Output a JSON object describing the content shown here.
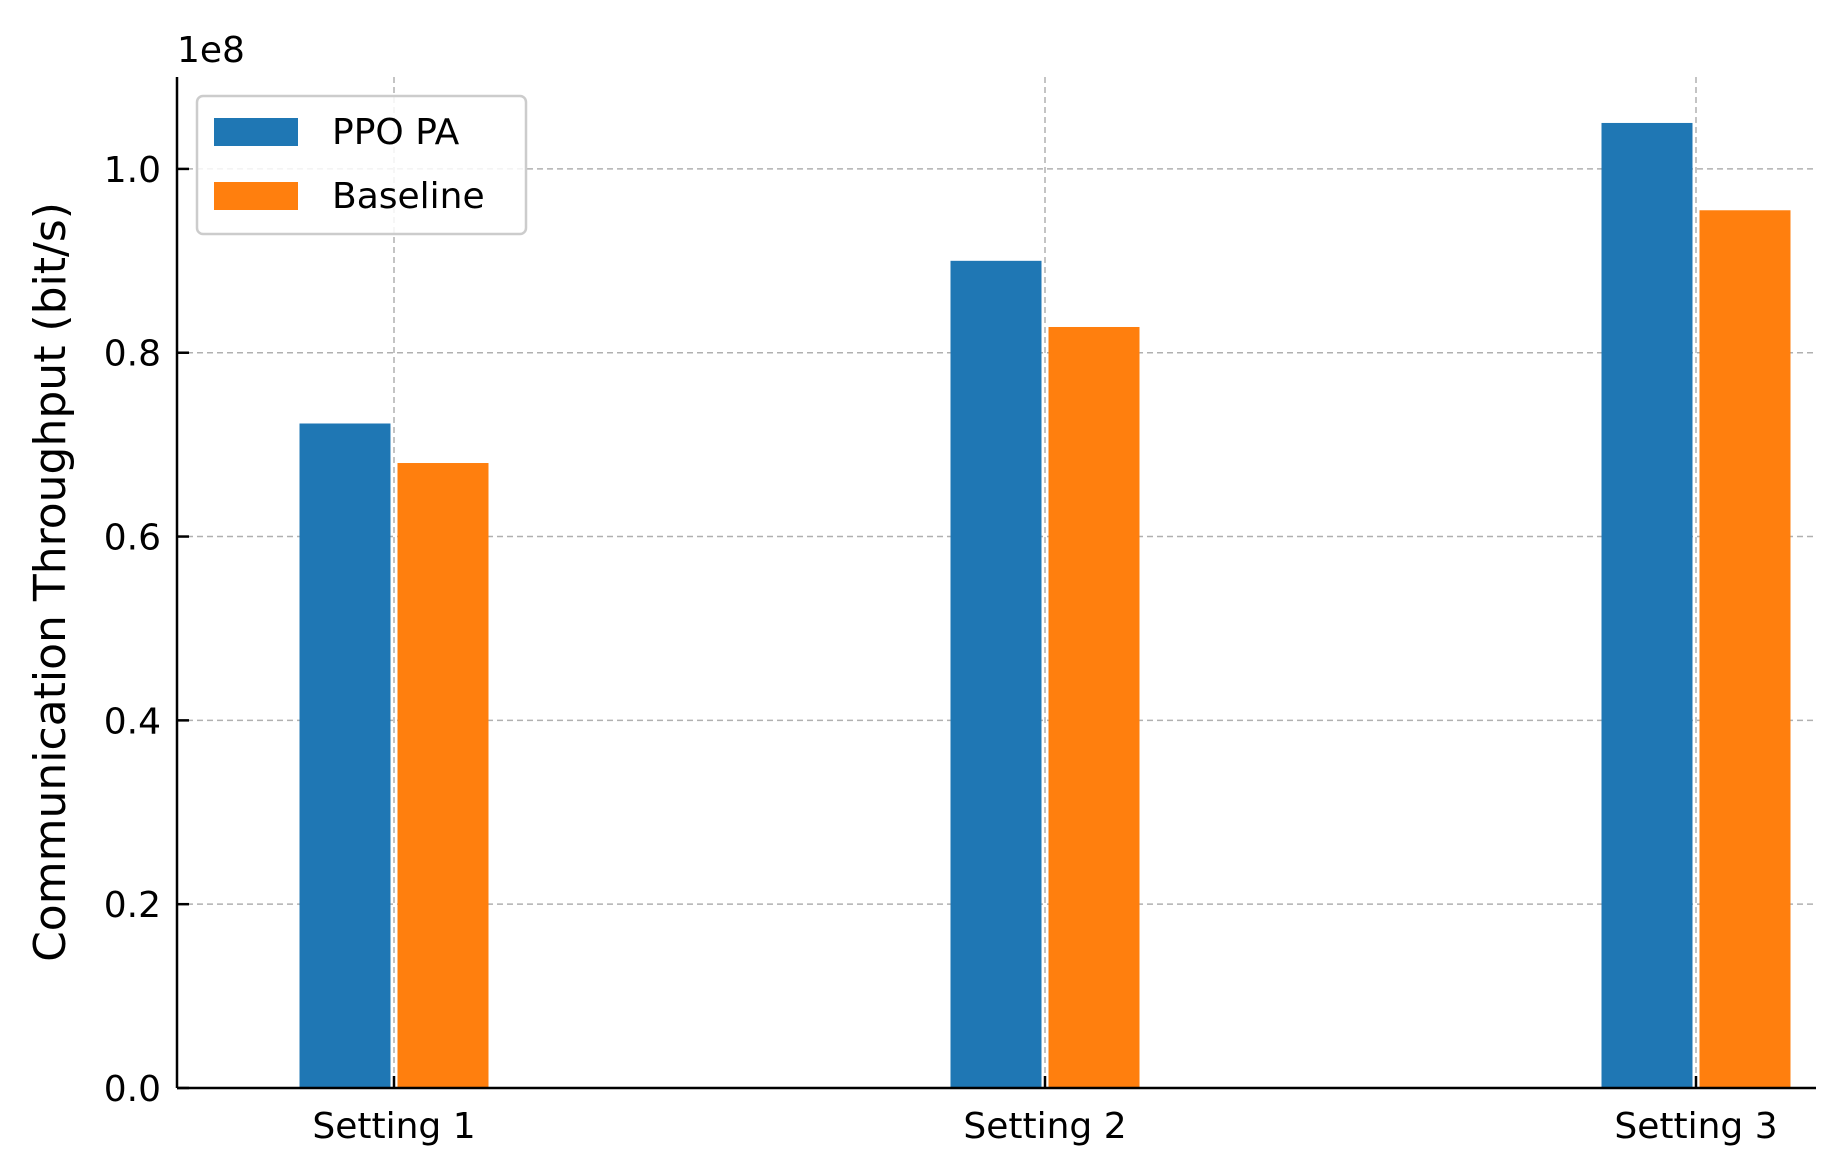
{
  "chart_data": {
    "type": "bar",
    "categories": [
      "Setting 1",
      "Setting 2",
      "Setting 3"
    ],
    "series": [
      {
        "name": "PPO PA",
        "color": "#1f77b4",
        "values": [
          72300000,
          90000000,
          105000000
        ]
      },
      {
        "name": "Baseline",
        "color": "#ff7f0e",
        "values": [
          68000000,
          82800000,
          95500000
        ]
      }
    ],
    "ylabel": "Communication Throughput (bit/s)",
    "xlabel": "",
    "title": "",
    "ylim": [
      0,
      110000000
    ],
    "yticks": [
      0,
      20000000,
      40000000,
      60000000,
      80000000,
      100000000
    ],
    "ytick_labels": [
      "0.0",
      "0.2",
      "0.4",
      "0.6",
      "0.8",
      "1.0"
    ],
    "offset_text": "1e8",
    "grid": true,
    "legend_position": "top-left"
  }
}
